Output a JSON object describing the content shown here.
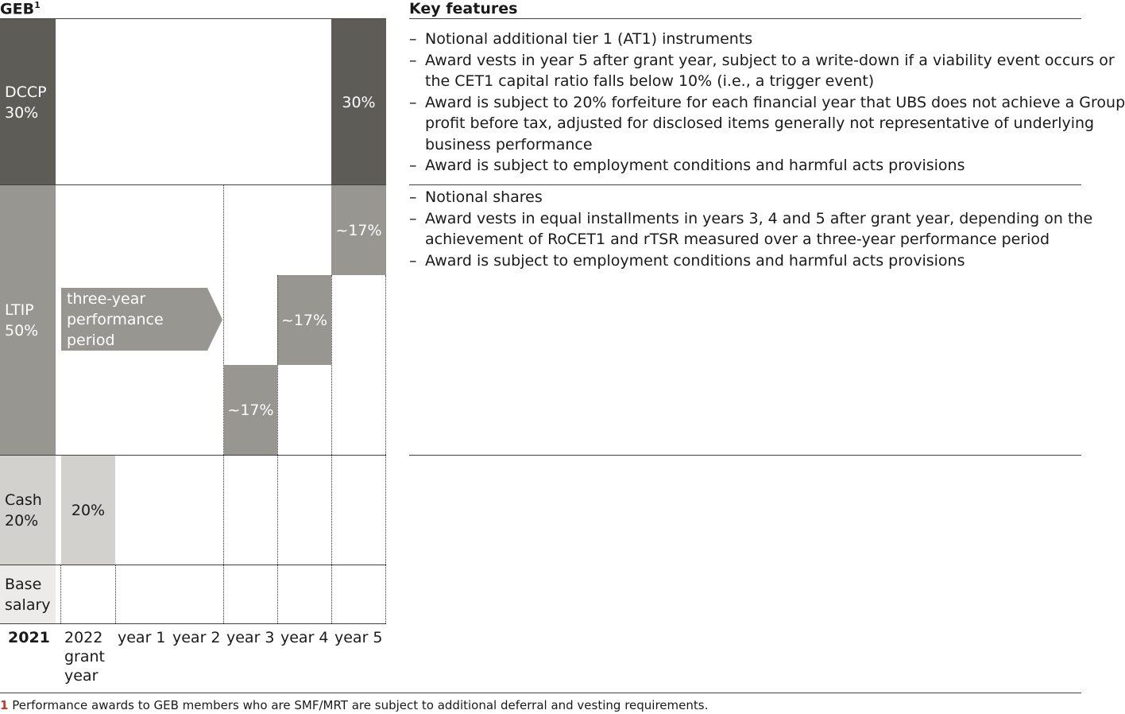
{
  "left": {
    "title": "GEB",
    "title_sup": "1",
    "rows": {
      "dccp": {
        "label_line1": "DCCP",
        "label_line2": "30%",
        "year5_value": "30%"
      },
      "ltip": {
        "label_line1": "LTIP",
        "label_line2": "50%",
        "arrow_line1": "three-year",
        "arrow_line2": "performance",
        "arrow_line3": "period",
        "year3_value": "~17%",
        "year4_value": "~17%",
        "year5_value": "~17%"
      },
      "cash": {
        "label_line1": "Cash",
        "label_line2": "20%",
        "grant_value": "20%"
      },
      "base": {
        "label_line1": "Base",
        "label_line2": "salary"
      }
    },
    "years": {
      "y2021": "2021",
      "grant_line1": "2022",
      "grant_line2": "grant",
      "grant_line3": "year",
      "y1": "year 1",
      "y2": "year 2",
      "y3": "year 3",
      "y4": "year 4",
      "y5": "year 5"
    }
  },
  "right": {
    "title": "Key features",
    "dccp_features": [
      "Notional additional tier 1 (AT1) instruments",
      "Award vests in year 5 after grant year, subject to a write-down if a viability event occurs or",
      "the CET1 capital ratio falls below 10% (i.e., a trigger event)",
      "Award is subject to 20% forfeiture for each financial year that UBS does not achieve a Group",
      "profit before tax, adjusted for disclosed items generally not representative of underlying",
      "business performance",
      "Award is subject to employment conditions and harmful acts provisions"
    ],
    "ltip_features": [
      "Notional shares",
      "Award vests in equal installments in years 3, 4 and 5 after grant year, depending on the",
      "achievement of RoCET1 and rTSR measured over a three-year performance period",
      "Award is subject to employment conditions and harmful acts provisions"
    ]
  },
  "footnote": {
    "number": "1",
    "text": "Performance awards to GEB members who are SMF/MRT are subject to additional deferral and vesting requirements."
  },
  "colors": {
    "dark": "#5e5c57",
    "mid": "#989691",
    "light": "#d2d1ce",
    "footnote_red": "#c0392b"
  }
}
